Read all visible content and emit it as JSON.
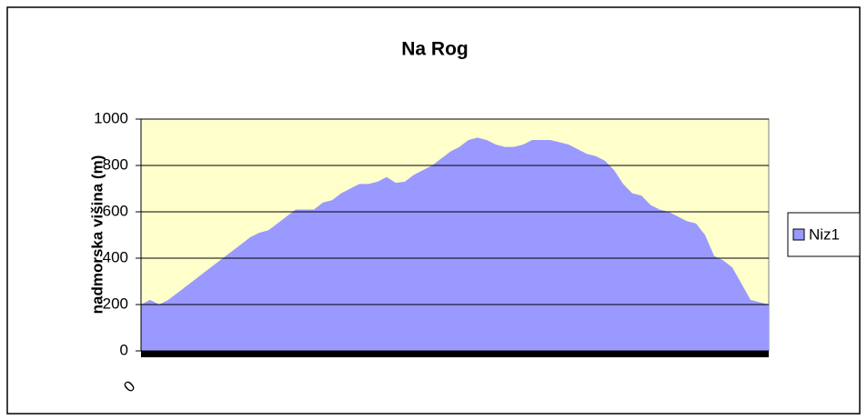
{
  "chart_data": {
    "type": "area",
    "title": "Na Rog",
    "y_label": "nadmorska višina (m)",
    "categories": [
      "0",
      null,
      null,
      null,
      null,
      null,
      null,
      null,
      null,
      null,
      null,
      null,
      null,
      null,
      null,
      null,
      null,
      null,
      null,
      null,
      null,
      null,
      null,
      null,
      null,
      null,
      null,
      null,
      null,
      null,
      null,
      null,
      null,
      null,
      null,
      null,
      null,
      null,
      null,
      null,
      null,
      null,
      null,
      null,
      null,
      null,
      null,
      null,
      null,
      null,
      null,
      null,
      null,
      null,
      null,
      null,
      null,
      null,
      null,
      null,
      null,
      null,
      null,
      null,
      null,
      null,
      null,
      null,
      null,
      null
    ],
    "series": [
      {
        "name": "Niz1",
        "color": "#9999ff",
        "values": [
          200,
          220,
          200,
          220,
          250,
          280,
          310,
          340,
          370,
          400,
          430,
          460,
          490,
          510,
          520,
          550,
          580,
          610,
          610,
          610,
          640,
          650,
          680,
          700,
          720,
          720,
          730,
          750,
          725,
          730,
          760,
          780,
          800,
          830,
          860,
          880,
          910,
          920,
          910,
          890,
          880,
          880,
          890,
          910,
          910,
          910,
          900,
          890,
          870,
          850,
          840,
          820,
          780,
          720,
          680,
          670,
          630,
          610,
          600,
          580,
          560,
          550,
          500,
          410,
          390,
          360,
          290,
          220,
          210,
          200
        ]
      }
    ],
    "ylim": [
      0,
      1000
    ],
    "yticks": [
      0,
      200,
      400,
      600,
      800,
      1000
    ],
    "grid": true,
    "legend": "right"
  }
}
